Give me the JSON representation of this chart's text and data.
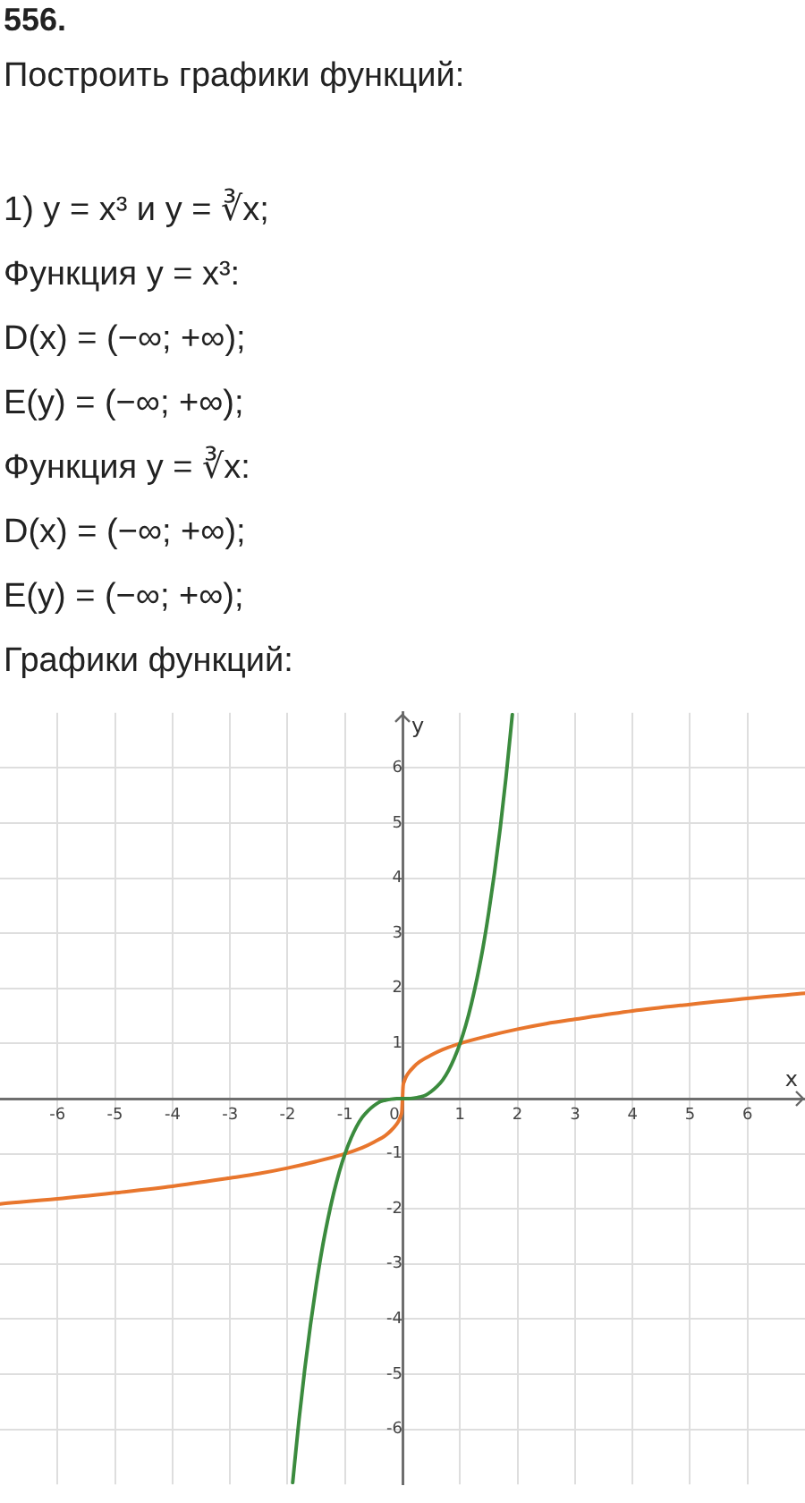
{
  "chart_data": {
    "type": "line",
    "title": "556.",
    "subtitle": "Построить графики функций:",
    "annotations": [
      "1) y = x³ и y = ∛x;",
      "Функция y = x³:",
      "D(x) = (−∞; +∞);",
      "E(y) = (−∞; +∞);",
      "Функция y = ∛x:",
      "D(x) = (−∞; +∞);",
      "E(y) = (−∞; +∞);",
      "Графики функций:"
    ],
    "xlabel": "x",
    "ylabel": "y",
    "series": [
      {
        "color": "#3b8b3e",
        "x": [
          -1.91,
          -1.8,
          -1.7,
          -1.6,
          -1.5,
          -1.4,
          -1.3,
          -1.2,
          -1.1,
          -1,
          -0.9,
          -0.8,
          -0.7,
          -0.6,
          -0.5,
          -0.4,
          -0.3,
          -0.2,
          -0.1,
          0,
          0.1,
          0.2,
          0.3,
          0.4,
          0.5,
          0.6,
          0.7,
          0.8,
          0.9,
          1,
          1.1,
          1.2,
          1.3,
          1.4,
          1.5,
          1.6,
          1.7,
          1.8,
          1.91
        ],
        "values": [
          -6.97,
          -5.83,
          -4.91,
          -4.1,
          -3.38,
          -2.74,
          -2.2,
          -1.73,
          -1.33,
          -1,
          -0.73,
          -0.51,
          -0.34,
          -0.22,
          -0.13,
          -0.06,
          -0.03,
          -0.01,
          0,
          0,
          0,
          0.01,
          0.03,
          0.06,
          0.13,
          0.22,
          0.34,
          0.51,
          0.73,
          1,
          1.33,
          1.73,
          2.2,
          2.74,
          3.38,
          4.1,
          4.91,
          5.83,
          6.97
        ]
      },
      {
        "color": "#e8762d",
        "x": [
          -7,
          -6,
          -5,
          -4,
          -3,
          -2.5,
          -2,
          -1.5,
          -1,
          -0.7,
          -0.5,
          -0.3,
          -0.2,
          -0.1,
          -0.06,
          -0.03,
          -0.01,
          0,
          0.01,
          0.03,
          0.06,
          0.1,
          0.2,
          0.3,
          0.5,
          0.7,
          1,
          1.5,
          2,
          2.5,
          3,
          4,
          5,
          6,
          7
        ],
        "values": [
          -1.91,
          -1.82,
          -1.71,
          -1.59,
          -1.44,
          -1.36,
          -1.26,
          -1.14,
          -1,
          -0.89,
          -0.79,
          -0.67,
          -0.58,
          -0.46,
          -0.39,
          -0.31,
          -0.22,
          0,
          0.22,
          0.31,
          0.39,
          0.46,
          0.58,
          0.67,
          0.79,
          0.89,
          1,
          1.14,
          1.26,
          1.36,
          1.44,
          1.59,
          1.71,
          1.82,
          1.91
        ]
      }
    ],
    "xlim": [
      -7,
      7
    ],
    "ylim": [
      -7,
      7
    ],
    "xticks": [
      -6,
      -5,
      -4,
      -3,
      -2,
      -1,
      0,
      1,
      2,
      3,
      4,
      5,
      6
    ],
    "yticks": [
      -6,
      -5,
      -4,
      -3,
      -2,
      -1,
      {
        "value": 0,
        "label": null
      },
      1,
      2,
      3,
      4,
      5,
      6
    ],
    "grid": true,
    "legend": false,
    "marker": "none",
    "line_style": "solid"
  }
}
